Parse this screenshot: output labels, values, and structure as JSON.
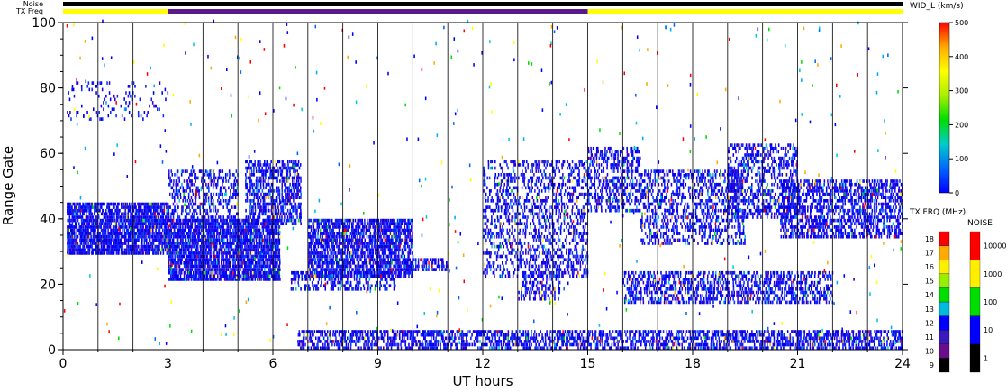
{
  "chart_data": {
    "type": "heatmap",
    "xlabel": "UT hours",
    "ylabel": "Range Gate",
    "xlim": [
      0,
      24
    ],
    "ylim": [
      0,
      100
    ],
    "x_ticks": [
      "0",
      "3",
      "6",
      "9",
      "12",
      "15",
      "18",
      "21",
      "24"
    ],
    "y_ticks": [
      "0",
      "20",
      "40",
      "60",
      "80",
      "100"
    ],
    "top_bars": {
      "noise_label": "Noise",
      "txfreq_label": "TX Freq",
      "txfreq_segments": [
        {
          "start": 0,
          "end": 3,
          "color": "#ffff00"
        },
        {
          "start": 3,
          "end": 15,
          "color": "#5a1a8a"
        },
        {
          "start": 15,
          "end": 24,
          "color": "#ffff00"
        }
      ]
    },
    "colorbars": {
      "width": {
        "title": "WID_L (km/s)",
        "ticks": [
          "0",
          "100",
          "200",
          "300",
          "400",
          "500"
        ],
        "stops": [
          "#0000ff",
          "#0066ff",
          "#00cccc",
          "#00dd00",
          "#aaee00",
          "#ffff00",
          "#ffaa00",
          "#ff0000"
        ]
      },
      "txfreq": {
        "title": "TX FRQ (MHz)",
        "ticks": [
          "9",
          "10",
          "11",
          "12",
          "13",
          "14",
          "15",
          "16",
          "17",
          "18"
        ],
        "colors": [
          "#000000",
          "#6a0d8a",
          "#3a1abf",
          "#0000ff",
          "#00bbdd",
          "#00dd00",
          "#99ee00",
          "#ffee00",
          "#ffaa00",
          "#ff0000"
        ]
      },
      "noise": {
        "title": "NOISE",
        "ticks": [
          "1",
          "10",
          "100",
          "1000",
          "10000"
        ],
        "colors": [
          "#000000",
          "#0000ff",
          "#00dd00",
          "#ffee00",
          "#ff0000"
        ]
      }
    },
    "scatter_regions": [
      {
        "x0": 0.1,
        "x1": 3.0,
        "y0": 29,
        "y1": 45,
        "density": 0.85
      },
      {
        "x0": 3.0,
        "x1": 6.2,
        "y0": 21,
        "y1": 40,
        "density": 0.85
      },
      {
        "x0": 3.0,
        "x1": 5.0,
        "y0": 40,
        "y1": 55,
        "density": 0.4
      },
      {
        "x0": 5.2,
        "x1": 6.8,
        "y0": 38,
        "y1": 58,
        "density": 0.55
      },
      {
        "x0": 7.0,
        "x1": 10.0,
        "y0": 22,
        "y1": 40,
        "density": 0.75
      },
      {
        "x0": 6.5,
        "x1": 9.5,
        "y0": 18,
        "y1": 24,
        "density": 0.4
      },
      {
        "x0": 9.8,
        "x1": 11.0,
        "y0": 24,
        "y1": 28,
        "density": 0.6
      },
      {
        "x0": 12.0,
        "x1": 15.0,
        "y0": 22,
        "y1": 58,
        "density": 0.35
      },
      {
        "x0": 15.0,
        "x1": 16.5,
        "y0": 42,
        "y1": 62,
        "density": 0.45
      },
      {
        "x0": 16.5,
        "x1": 19.5,
        "y0": 32,
        "y1": 55,
        "density": 0.4
      },
      {
        "x0": 19.0,
        "x1": 21.0,
        "y0": 40,
        "y1": 63,
        "density": 0.4
      },
      {
        "x0": 20.5,
        "x1": 24.0,
        "y0": 34,
        "y1": 52,
        "density": 0.55
      },
      {
        "x0": 16.0,
        "x1": 22.0,
        "y0": 14,
        "y1": 24,
        "density": 0.45
      },
      {
        "x0": 13.0,
        "x1": 14.2,
        "y0": 15,
        "y1": 24,
        "density": 0.35
      },
      {
        "x0": 6.7,
        "x1": 24.0,
        "y0": 0,
        "y1": 6,
        "density": 0.55
      },
      {
        "x0": 0.1,
        "x1": 3.0,
        "y0": 70,
        "y1": 82,
        "density": 0.12
      }
    ],
    "sparse_noise": {
      "x0": 0,
      "x1": 24,
      "y0": 0,
      "y1": 100,
      "count": 520
    }
  }
}
